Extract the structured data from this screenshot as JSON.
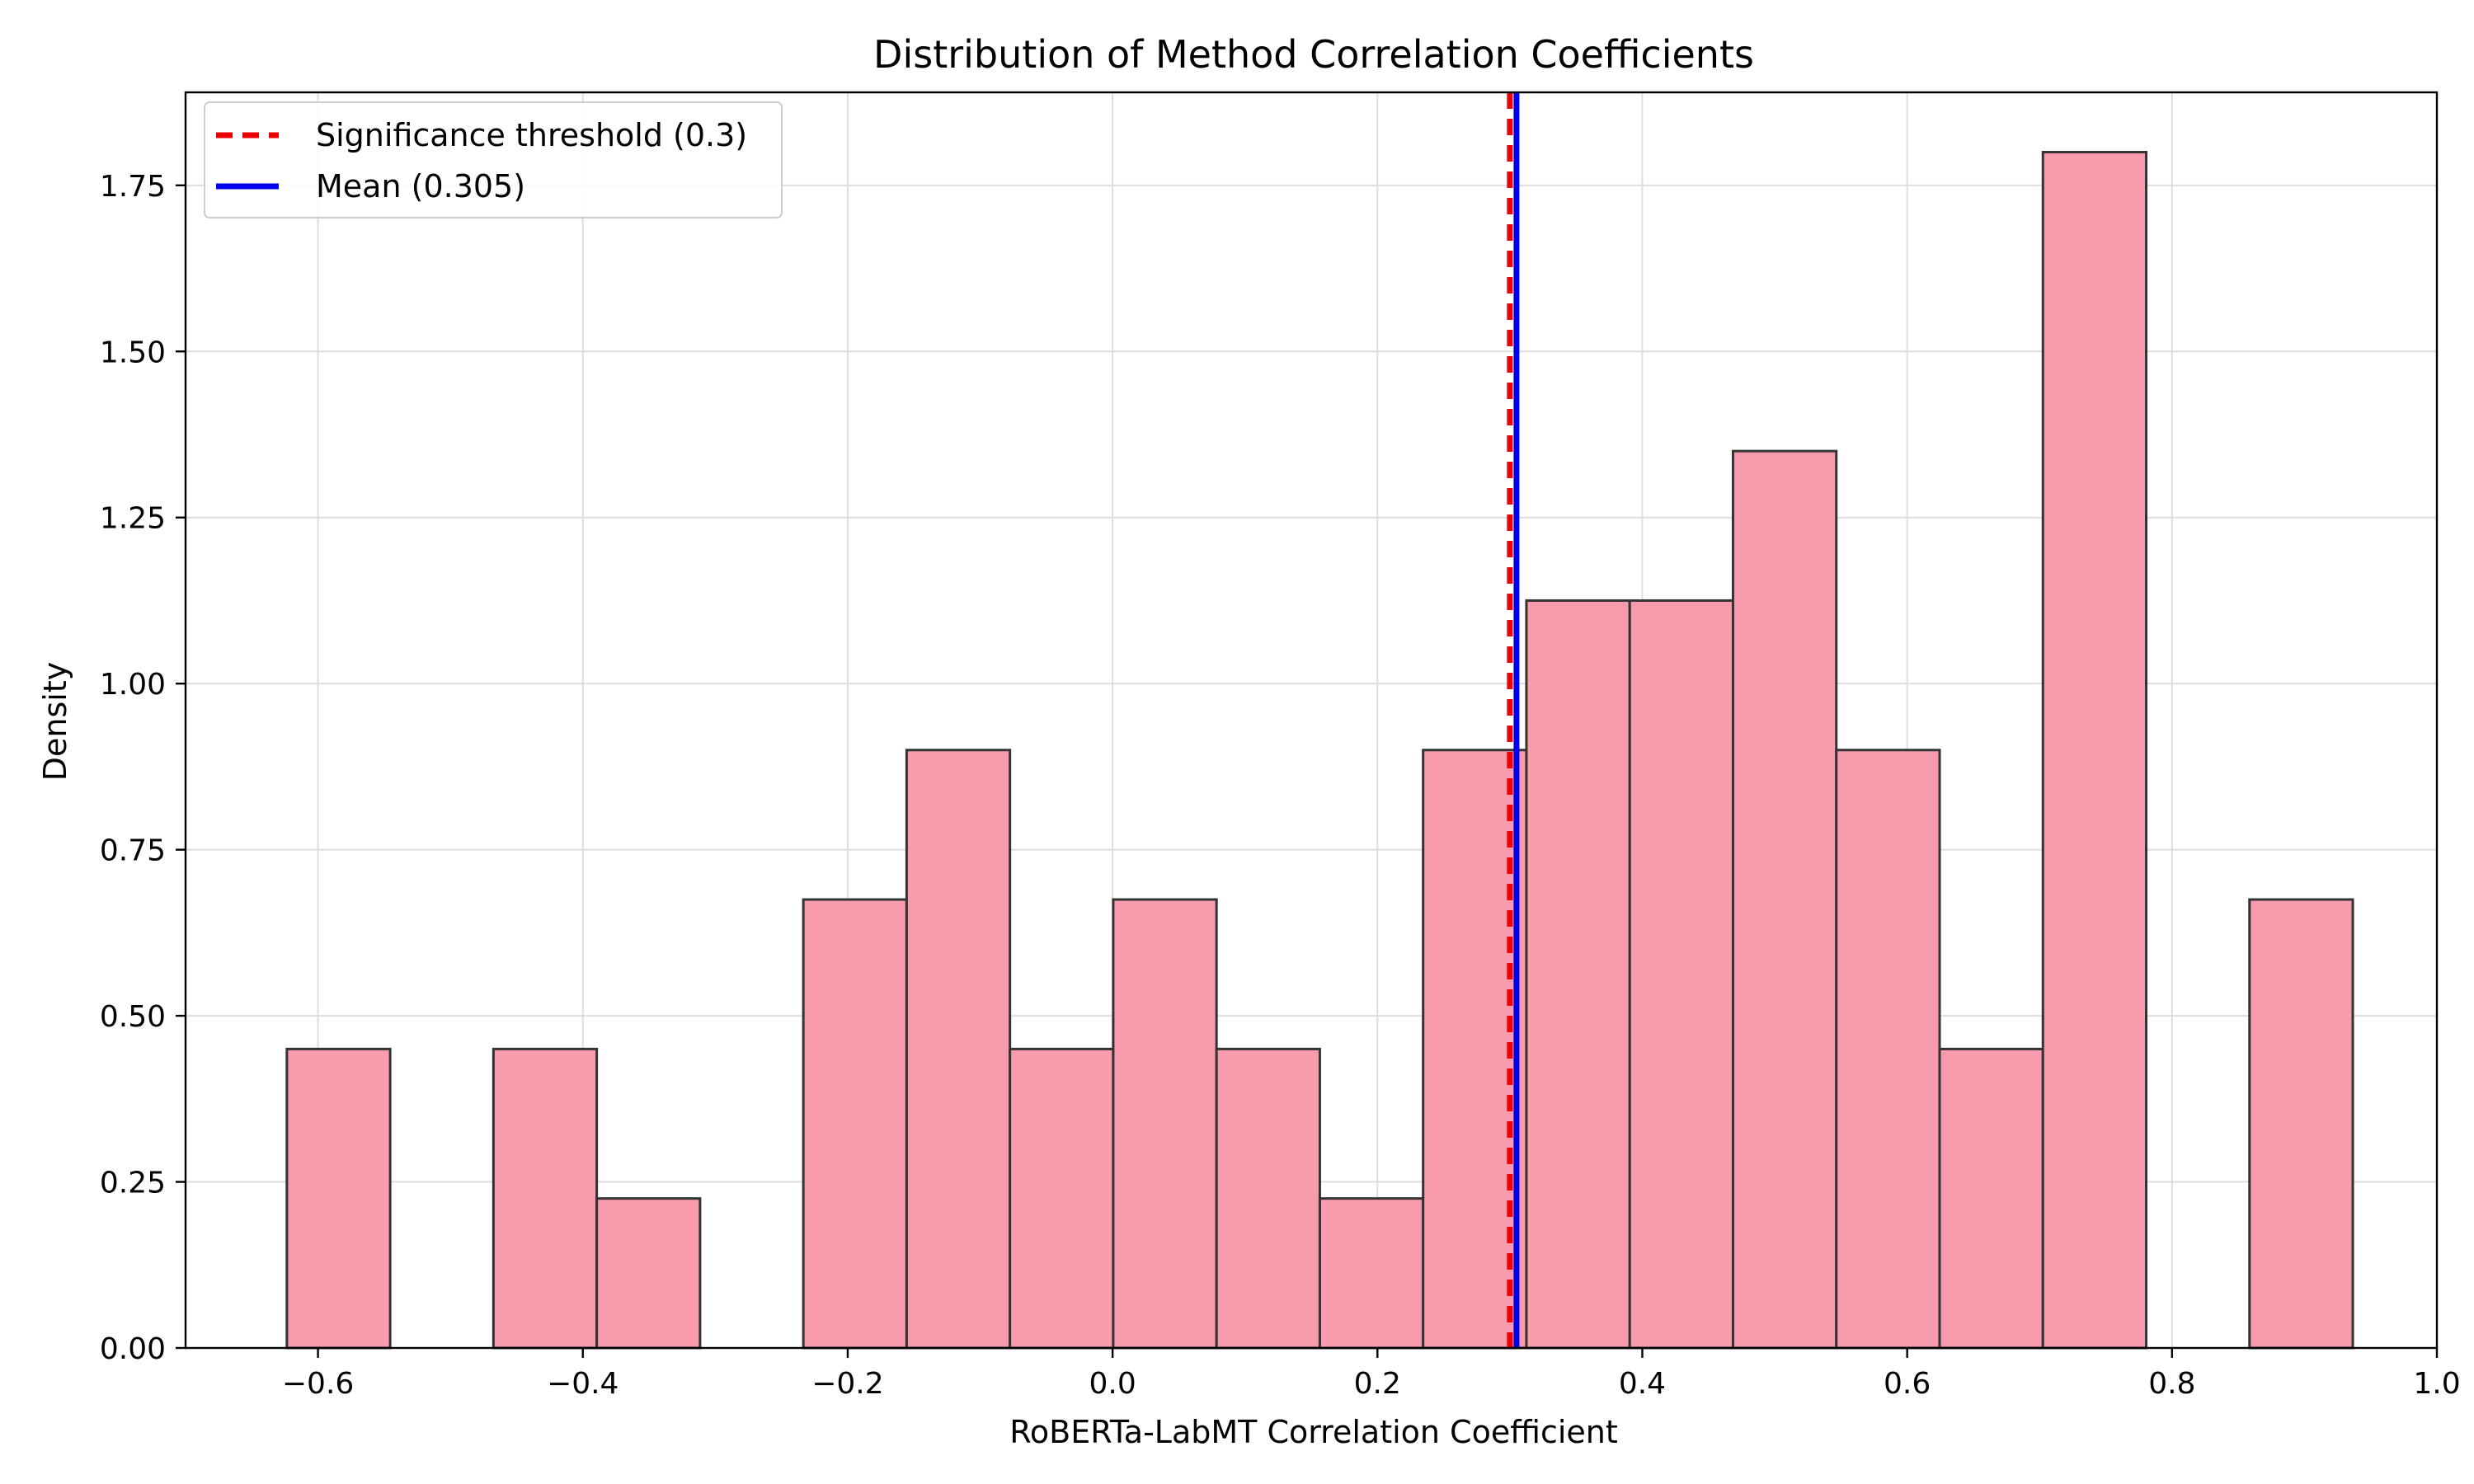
{
  "chart_data": {
    "type": "bar",
    "title": "Distribution of Method Correlation Coefficients",
    "xlabel": "RoBERTa-LabMT Correlation Coefficient",
    "ylabel": "Density",
    "xlim": [
      -0.7,
      1.0
    ],
    "ylim": [
      0,
      1.89
    ],
    "xticks": [
      -0.6,
      -0.4,
      -0.2,
      0.0,
      0.2,
      0.4,
      0.6,
      0.8,
      1.0
    ],
    "xtick_labels": [
      "−0.6",
      "−0.4",
      "−0.2",
      "0.0",
      "0.2",
      "0.4",
      "0.6",
      "0.8",
      "1.0"
    ],
    "yticks": [
      0,
      0.25,
      0.5,
      0.75,
      1.0,
      1.25,
      1.5,
      1.75
    ],
    "ytick_labels": [
      "0.00",
      "0.25",
      "0.50",
      "0.75",
      "1.00",
      "1.25",
      "1.50",
      "1.75"
    ],
    "grid": true,
    "legend_position": "top-left",
    "bins": {
      "edges": [
        -0.6235,
        -0.5455,
        -0.4675,
        -0.3895,
        -0.3115,
        -0.2335,
        -0.1555,
        -0.0775,
        0.0005,
        0.0785,
        0.1565,
        0.2345,
        0.3125,
        0.3905,
        0.4685,
        0.5465,
        0.6245,
        0.7025,
        0.7805,
        0.8585,
        0.9365
      ],
      "density": [
        0.45,
        0.0,
        0.45,
        0.225,
        0.0,
        0.675,
        0.9,
        0.45,
        0.675,
        0.45,
        0.225,
        0.9,
        1.125,
        1.125,
        1.35,
        0.9,
        0.45,
        1.8,
        0.0,
        0.675
      ]
    },
    "bar_color": "#f89cad",
    "bar_edge_color": "#333333",
    "vlines": [
      {
        "label": "Significance threshold (0.3)",
        "x": 0.3,
        "color": "#ee0000",
        "style": "dashed"
      },
      {
        "label": "Mean (0.305)",
        "x": 0.305,
        "color": "#0000ee",
        "style": "solid"
      }
    ]
  }
}
